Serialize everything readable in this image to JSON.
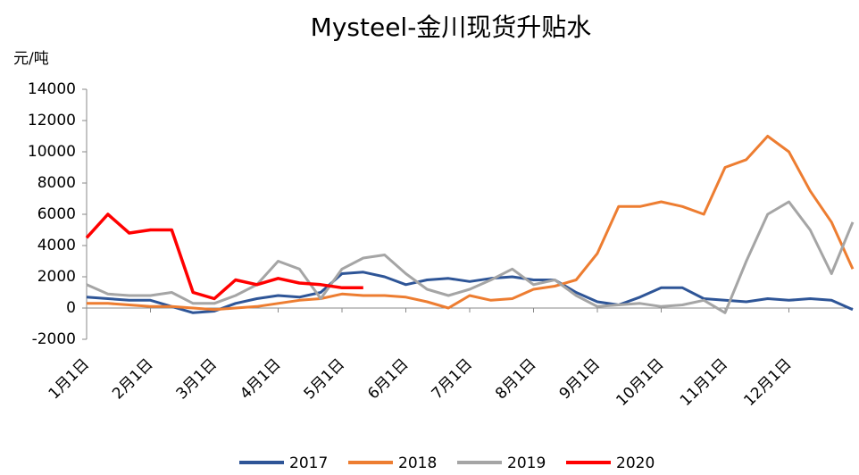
{
  "chart_data": {
    "type": "line",
    "title": "Mysteel-金川现货升贴水",
    "y_label": "元/吨",
    "categories": [
      "1月1日",
      null,
      null,
      "2月1日",
      null,
      null,
      "3月1日",
      null,
      null,
      "4月1日",
      null,
      null,
      "5月1日",
      null,
      null,
      "6月1日",
      null,
      null,
      "7月1日",
      null,
      null,
      "8月1日",
      null,
      null,
      "9月1日",
      null,
      null,
      "10月1日",
      null,
      null,
      "11月1日",
      null,
      null,
      "12月1日",
      null,
      null,
      null
    ],
    "series": [
      {
        "name": "2017",
        "color": "#2e5597",
        "values": [
          700,
          600,
          500,
          500,
          100,
          -300,
          -200,
          300,
          600,
          800,
          700,
          1000,
          2200,
          2300,
          2000,
          1500,
          1800,
          1900,
          1700,
          1900,
          2000,
          1800,
          1800,
          1000,
          400,
          200,
          700,
          1300,
          1300,
          600,
          500,
          400,
          600,
          500,
          600,
          500,
          -100
        ]
      },
      {
        "name": "2018",
        "color": "#ed7d31",
        "values": [
          300,
          300,
          200,
          100,
          100,
          0,
          -100,
          0,
          100,
          300,
          500,
          600,
          900,
          800,
          800,
          700,
          400,
          0,
          800,
          500,
          600,
          1200,
          1400,
          1800,
          3500,
          6500,
          6500,
          6800,
          6500,
          6000,
          9000,
          9500,
          11000,
          10000,
          7500,
          5500,
          2500
        ]
      },
      {
        "name": "2019",
        "color": "#a5a5a5",
        "values": [
          1500,
          900,
          800,
          800,
          1000,
          300,
          300,
          800,
          1500,
          3000,
          2500,
          600,
          2500,
          3200,
          3400,
          2200,
          1200,
          800,
          1200,
          1800,
          2500,
          1500,
          1800,
          800,
          100,
          200,
          300,
          100,
          200,
          500,
          -300,
          3000,
          6000,
          6800,
          5000,
          2200,
          5500
        ]
      },
      {
        "name": "2020",
        "color": "#ff0000",
        "values": [
          4500,
          6000,
          4800,
          5000,
          5000,
          1000,
          600,
          1800,
          1500,
          1900,
          1600,
          1500,
          1300,
          1300,
          null,
          null,
          null,
          null,
          null,
          null,
          null,
          null,
          null,
          null,
          null,
          null,
          null,
          null,
          null,
          null,
          null,
          null,
          null,
          null,
          null,
          null,
          null
        ]
      }
    ],
    "ylim": [
      -2000,
      14000
    ],
    "yticks": [
      -2000,
      0,
      2000,
      4000,
      6000,
      8000,
      10000,
      12000,
      14000
    ],
    "grid": false,
    "legend": "bottom"
  }
}
